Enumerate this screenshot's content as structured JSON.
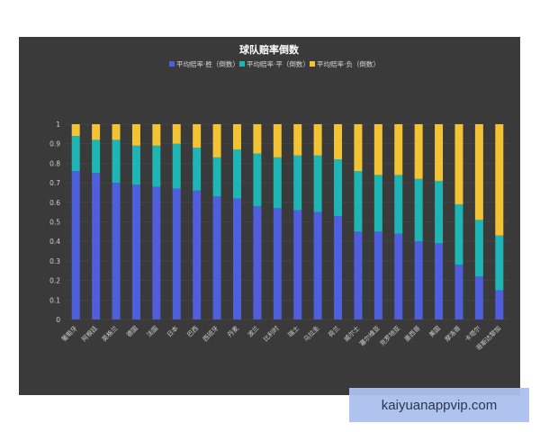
{
  "chart_data": {
    "type": "bar",
    "stacked": true,
    "title": "球队赔率倒数",
    "legend_position": "top",
    "colors": {
      "win": "#4f5fdb",
      "draw": "#1fb5b5",
      "lose": "#f1c335"
    },
    "series": [
      {
        "name": "平均赔率·胜（倒数）"
      },
      {
        "name": "平均赔率·平（倒数）"
      },
      {
        "name": "平均赔率·负（倒数）"
      }
    ],
    "categories": [
      "葡萄牙",
      "阿根廷",
      "英格兰",
      "德国",
      "法国",
      "日本",
      "巴西",
      "西班牙",
      "丹麦",
      "波兰",
      "比利时",
      "瑞士",
      "乌拉圭",
      "荷兰",
      "威尔士",
      "塞尔维亚",
      "克罗地亚",
      "墨西哥",
      "美国",
      "摩洛哥",
      "卡塔尔",
      "哥斯达黎加"
    ],
    "win": [
      0.76,
      0.75,
      0.7,
      0.69,
      0.68,
      0.67,
      0.66,
      0.63,
      0.62,
      0.58,
      0.57,
      0.56,
      0.55,
      0.53,
      0.45,
      0.45,
      0.44,
      0.4,
      0.39,
      0.28,
      0.22,
      0.15
    ],
    "draw": [
      0.18,
      0.17,
      0.22,
      0.2,
      0.21,
      0.23,
      0.22,
      0.2,
      0.25,
      0.27,
      0.26,
      0.28,
      0.29,
      0.29,
      0.31,
      0.29,
      0.3,
      0.32,
      0.32,
      0.31,
      0.29,
      0.28
    ],
    "lose": [
      0.06,
      0.08,
      0.08,
      0.11,
      0.11,
      0.1,
      0.12,
      0.17,
      0.13,
      0.15,
      0.17,
      0.16,
      0.16,
      0.18,
      0.24,
      0.26,
      0.26,
      0.28,
      0.29,
      0.41,
      0.49,
      0.57
    ],
    "ylim": [
      0,
      1
    ],
    "yticks": [
      "0",
      "0.1",
      "0.2",
      "0.3",
      "0.4",
      "0.5",
      "0.6",
      "0.7",
      "0.8",
      "0.9",
      "1"
    ],
    "grid": true
  },
  "watermark": "kaiyuanappvip.com"
}
